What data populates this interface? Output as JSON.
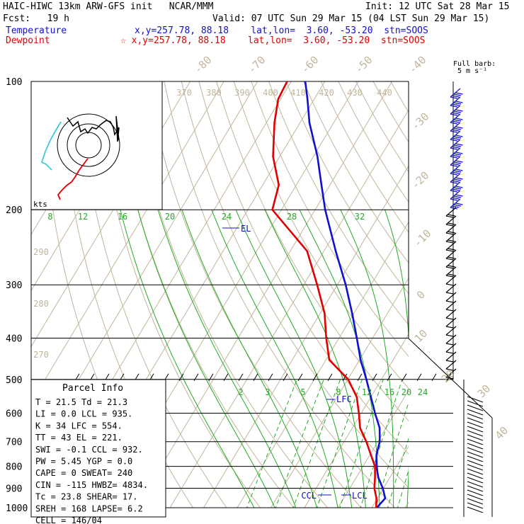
{
  "header": {
    "line1_left": "HAIC-HIWC 13km ARW-GFS init   NCAR/MMM",
    "line1_right": "Init: 12 UTC Sat 28 Mar 15",
    "fcst": "Fcst:   19 h",
    "valid": "Valid: 07 UTC Sun 29 Mar 15 (04 LST Sun 29 Mar 15)",
    "temp_label": "Temperature",
    "temp_info": "x,y=257.78, 88.18    lat,lon=  3.60, -53.20  stn=SOOS",
    "dew_label": "Dewpoint",
    "dew_info": "☆ x,y=257.78, 88.18    lat,lon=  3.60, -53.20  stn=SOOS"
  },
  "barb_legend": {
    "line1": "Full barb:",
    "line2": "5 m s⁻¹"
  },
  "hodograph_label": "kts",
  "parcel_info": {
    "title": "Parcel Info",
    "rows": [
      "T  =    21.5  Td =  21.3",
      "LI =     0.0  LCL =  935.",
      "K  =      34  LFC =  554.",
      "TT =      43  EL  =  221.",
      "SWI =   -0.1  CCL =  932.",
      "PW =    5.45  YGP =   0.0",
      "CAPE =     0  SWEAT=  240",
      "CIN =   -115  HWBZ= 4834.",
      "Tc =    23.8  SHEAR=  17.",
      "SREH =   168  LAPSE=  6.2",
      "CELL = 146/04"
    ]
  },
  "colors": {
    "temperature": "#1010d0",
    "dewpoint": "#e00000",
    "dry_adiabat": "#c2b59b",
    "moist_adiabat": "#22aa22",
    "isobar": "#000000",
    "isotherm": "#c2b59b"
  },
  "chart_data": {
    "type": "line",
    "chart_kind": "skew-T log-P sounding",
    "y_axis": {
      "label_values": [
        "100",
        "200",
        "300",
        "400",
        "500",
        "600",
        "700",
        "800",
        "900",
        "1000"
      ],
      "pressures": [
        100,
        200,
        300,
        400,
        500,
        600,
        700,
        800,
        900,
        1000
      ],
      "log_scale": true
    },
    "isotherm_labels": [
      "-80",
      "-70",
      "-60",
      "-50",
      "-40",
      "-30",
      "-20",
      "-10",
      "0",
      "10",
      "20",
      "30",
      "40"
    ],
    "dry_adiabat_labels": [
      "370",
      "380",
      "390",
      "400",
      "410",
      "420",
      "430",
      "440",
      "290",
      "280",
      "270"
    ],
    "moist_adiabat_labels_upper": [
      "8",
      "12",
      "16",
      "20",
      "24",
      "28",
      "32"
    ],
    "moist_adiabat_labels_lower": [
      "2",
      "3",
      "5",
      "8",
      "12",
      "16",
      "20",
      "24"
    ],
    "series": [
      {
        "name": "Temperature",
        "points": [
          [
            1000,
            21.5
          ],
          [
            950,
            22.3
          ],
          [
            900,
            19.8
          ],
          [
            850,
            16.6
          ],
          [
            800,
            14.0
          ],
          [
            750,
            11.9
          ],
          [
            700,
            10.6
          ],
          [
            650,
            8.1
          ],
          [
            600,
            4.1
          ],
          [
            550,
            0.0
          ],
          [
            500,
            -4.5
          ],
          [
            450,
            -9.7
          ],
          [
            400,
            -14.7
          ],
          [
            350,
            -20.5
          ],
          [
            300,
            -27.5
          ],
          [
            250,
            -36.5
          ],
          [
            200,
            -47.0
          ],
          [
            175,
            -52.5
          ],
          [
            150,
            -58.8
          ],
          [
            125,
            -67.2
          ],
          [
            110,
            -72.0
          ],
          [
            100,
            -75.8
          ]
        ]
      },
      {
        "name": "Dewpoint",
        "points": [
          [
            1000,
            21.3
          ],
          [
            950,
            19.7
          ],
          [
            900,
            17.3
          ],
          [
            850,
            15.6
          ],
          [
            800,
            13.6
          ],
          [
            750,
            10.2
          ],
          [
            700,
            6.6
          ],
          [
            650,
            2.3
          ],
          [
            600,
            -0.7
          ],
          [
            550,
            -4.2
          ],
          [
            500,
            -9.9
          ],
          [
            450,
            -19.0
          ],
          [
            400,
            -23.8
          ],
          [
            350,
            -28.7
          ],
          [
            300,
            -36.0
          ],
          [
            250,
            -45.0
          ],
          [
            200,
            -62.7
          ],
          [
            175,
            -65.2
          ],
          [
            150,
            -72.0
          ],
          [
            125,
            -77.6
          ],
          [
            110,
            -80.7
          ],
          [
            100,
            -81.2
          ]
        ]
      }
    ],
    "annotations": [
      "EL",
      "LFC",
      "CCL",
      "LCL"
    ]
  }
}
